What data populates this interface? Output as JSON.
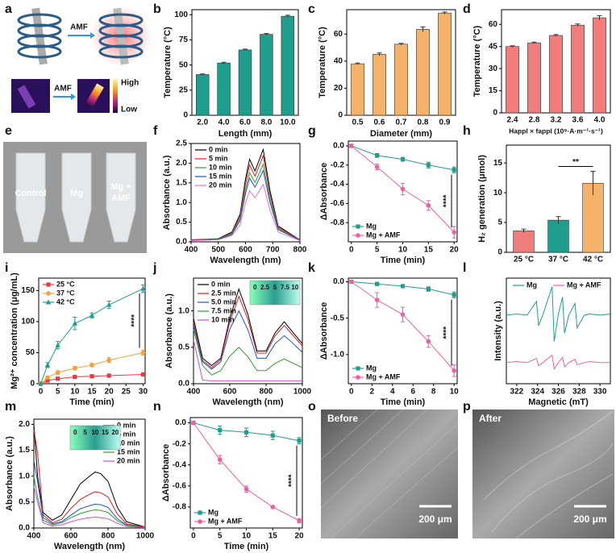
{
  "panels": {
    "a": {
      "panel": "a",
      "arrow_label": "AMF",
      "thermal_arrow_label": "AMF",
      "scale_high": "High",
      "scale_low": "Low"
    },
    "e": {
      "panel": "e",
      "labels": [
        "Control",
        "Mg",
        "Mg +",
        "AMF"
      ]
    },
    "o": {
      "panel": "o",
      "label": "Before",
      "scale": "200 μm"
    },
    "p": {
      "panel": "p",
      "label": "After",
      "scale": "200 μm"
    }
  },
  "chart_data": [
    {
      "panel": "b",
      "type": "bar",
      "categories": [
        "2.0",
        "4.0",
        "6.0",
        "8.0",
        "10.0"
      ],
      "values": [
        40.5,
        52,
        65,
        80.5,
        98.5
      ],
      "errors": [
        0.6,
        0.7,
        0.8,
        0.8,
        1.0
      ],
      "color": "#1f9e8e",
      "ylim": [
        0,
        105
      ],
      "yticks": [
        0,
        25,
        50,
        75,
        100
      ],
      "xlabel": "Length (mm)",
      "ylabel": "Temperature (°C)"
    },
    {
      "panel": "c",
      "type": "bar",
      "categories": [
        "0.5",
        "0.6",
        "0.7",
        "0.8",
        "0.9"
      ],
      "values": [
        38,
        45,
        52.5,
        63.5,
        75.5
      ],
      "errors": [
        0.6,
        1.0,
        0.6,
        1.8,
        0.8
      ],
      "color": "#f5b26b",
      "ylim": [
        0,
        78
      ],
      "yticks": [
        0,
        20,
        40,
        60
      ],
      "xlabel": "Diameter (mm)",
      "ylabel": "Temperature (°C)"
    },
    {
      "panel": "d",
      "type": "bar",
      "categories": [
        "2.4",
        "2.8",
        "3.2",
        "3.6",
        "4.0"
      ],
      "values": [
        45,
        47.5,
        52.5,
        59.5,
        64.5
      ],
      "errors": [
        0.5,
        0.5,
        0.6,
        0.8,
        1.5
      ],
      "color": "#f07c7c",
      "ylim": [
        0,
        70
      ],
      "yticks": [
        0,
        15,
        30,
        45,
        60
      ],
      "xlabel": "Happl × fappl (10⁹·A·m⁻¹·s⁻¹)",
      "ylabel": "Temperature (°C)"
    },
    {
      "panel": "f",
      "type": "line",
      "markers": false,
      "legend": "upper left",
      "x": [
        400,
        500,
        550,
        580,
        600,
        615,
        635,
        665,
        690,
        720,
        800
      ],
      "xlim": [
        400,
        800
      ],
      "xticks": [
        400,
        500,
        600,
        700,
        800
      ],
      "ylim": [
        0,
        2.5
      ],
      "yticks": [
        {
          "value": 0,
          "label": "0.0"
        },
        0.5,
        {
          "value": 1,
          "label": "1.0"
        },
        1.5,
        {
          "value": 2,
          "label": "2.0"
        },
        2.5
      ],
      "xlabel": "Wavelength (nm)",
      "ylabel": "Absorbance (a.u.)",
      "series": [
        {
          "name": "0 min",
          "color": "#000000",
          "values": [
            0.05,
            0.08,
            0.25,
            0.7,
            1.6,
            2.1,
            1.8,
            2.35,
            1.3,
            0.4,
            0.05
          ]
        },
        {
          "name": "5 min",
          "color": "#e31a1c",
          "values": [
            0.05,
            0.07,
            0.23,
            0.65,
            1.49,
            1.95,
            1.67,
            2.19,
            1.21,
            0.37,
            0.05
          ]
        },
        {
          "name": "10 min",
          "color": "#2ca02c",
          "values": [
            0.04,
            0.07,
            0.21,
            0.59,
            1.34,
            1.76,
            1.51,
            1.97,
            1.09,
            0.34,
            0.04
          ]
        },
        {
          "name": "15 min",
          "color": "#1f4fd6",
          "values": [
            0.04,
            0.06,
            0.19,
            0.54,
            1.23,
            1.62,
            1.39,
            1.81,
            1.0,
            0.31,
            0.04
          ]
        },
        {
          "name": "20 min",
          "color": "#e377c2",
          "values": [
            0.03,
            0.05,
            0.16,
            0.43,
            0.99,
            1.3,
            1.12,
            1.46,
            0.81,
            0.25,
            0.03
          ]
        }
      ]
    },
    {
      "panel": "g",
      "type": "line",
      "markers": true,
      "legend": "lower left",
      "annotation": "****",
      "x": [
        0,
        5,
        10,
        15,
        20
      ],
      "xlim": [
        -0.6,
        20.6
      ],
      "xticks": [
        0,
        5,
        10,
        15,
        20
      ],
      "ylim": [
        -1.0,
        0.05
      ],
      "yticks": [
        {
          "value": 0,
          "label": "0.0"
        },
        -0.2,
        -0.4,
        -0.6,
        -0.8
      ],
      "xlabel": "Time (min)",
      "ylabel": "ΔAbsorbance",
      "series": [
        {
          "name": "Mg",
          "color": "#1f9e8e",
          "marker": "square",
          "values": [
            0,
            -0.1,
            -0.14,
            -0.2,
            -0.25
          ],
          "errors": [
            0,
            0.02,
            0.02,
            0.03,
            0.03
          ]
        },
        {
          "name": "Mg + AMF",
          "color": "#f0609e",
          "marker": "circle",
          "values": [
            0,
            -0.22,
            -0.45,
            -0.62,
            -0.9
          ],
          "errors": [
            0,
            0.03,
            0.06,
            0.05,
            0.06
          ]
        }
      ]
    },
    {
      "panel": "h",
      "type": "bar",
      "categories": [
        "25 °C",
        "37 °C",
        "42 °C"
      ],
      "values": [
        3.6,
        5.4,
        11.6
      ],
      "errors": [
        0.3,
        0.6,
        2.0
      ],
      "colors": [
        "#f07c7c",
        "#1f9e8e",
        "#f5b26b"
      ],
      "ylim": [
        0,
        18
      ],
      "yticks": [
        0,
        5,
        10,
        15
      ],
      "ylabel": "H₂ generation (μmol)",
      "annotation": "**"
    },
    {
      "panel": "i",
      "type": "line",
      "markers": true,
      "legend": "upper left",
      "annotation": "****",
      "x": [
        0,
        2,
        5,
        10,
        15,
        20,
        30
      ],
      "xlim": [
        -0.6,
        30.6
      ],
      "xticks": [
        0,
        5,
        10,
        15,
        20,
        25,
        30
      ],
      "ylim": [
        0,
        170
      ],
      "yticks": [
        0,
        50,
        100,
        150
      ],
      "xlabel": "Time (min)",
      "ylabel": "Mg²⁺ concentration (μg/mL)",
      "series": [
        {
          "name": "25 °C",
          "color": "#e8383d",
          "marker": "square",
          "values": [
            0,
            5,
            8,
            11,
            12,
            13,
            15
          ],
          "errors": [
            0,
            1,
            1,
            1,
            1,
            1,
            1.5
          ]
        },
        {
          "name": "37 °C",
          "color": "#f5a23b",
          "marker": "circle",
          "values": [
            0,
            10,
            18,
            25,
            30,
            38,
            50
          ],
          "errors": [
            0,
            2,
            3,
            3,
            3,
            4,
            4
          ]
        },
        {
          "name": "42 °C",
          "color": "#1f9e8e",
          "marker": "triangle",
          "values": [
            0,
            30,
            62,
            97,
            110,
            127,
            153
          ],
          "errors": [
            0,
            4,
            6,
            10,
            4,
            6,
            6
          ]
        }
      ]
    },
    {
      "panel": "j",
      "type": "line",
      "markers": false,
      "legend": "upper left",
      "inset_labels": [
        "0",
        "2.5",
        "5",
        "7.5",
        "10"
      ],
      "x": [
        400,
        450,
        500,
        550,
        600,
        650,
        700,
        750,
        800,
        850,
        900,
        950,
        1000
      ],
      "xlim": [
        400,
        1000
      ],
      "xticks": [
        400,
        600,
        800,
        1000
      ],
      "ylim": [
        0,
        1.45
      ],
      "yticks": [
        {
          "value": 0,
          "label": "0.0"
        },
        0.5,
        {
          "value": 1,
          "label": "1.0"
        }
      ],
      "xlabel": "Wavelength (nm)",
      "ylabel": "Absorbance (a.u.)",
      "series": [
        {
          "name": "0 min",
          "color": "#000000",
          "values": [
            0.9,
            0.35,
            0.25,
            0.35,
            0.9,
            1.3,
            0.95,
            0.45,
            0.45,
            0.7,
            0.85,
            0.7,
            0.55
          ]
        },
        {
          "name": "2.5 min",
          "color": "#e31a1c",
          "values": [
            0.85,
            0.32,
            0.22,
            0.33,
            0.85,
            1.2,
            0.88,
            0.42,
            0.42,
            0.66,
            0.8,
            0.66,
            0.52
          ]
        },
        {
          "name": "5.0 min",
          "color": "#1f4fd6",
          "values": [
            0.8,
            0.3,
            0.2,
            0.3,
            0.75,
            1.0,
            0.74,
            0.35,
            0.35,
            0.55,
            0.66,
            0.55,
            0.43
          ]
        },
        {
          "name": "7.5 min",
          "color": "#2ca02c",
          "values": [
            0.75,
            0.25,
            0.12,
            0.18,
            0.38,
            0.5,
            0.37,
            0.18,
            0.18,
            0.28,
            0.34,
            0.28,
            0.22
          ]
        },
        {
          "name": "10 min",
          "color": "#d14fd1",
          "values": [
            0.6,
            0.05,
            0.04,
            0.04,
            0.04,
            0.04,
            0.04,
            0.04,
            0.04,
            0.04,
            0.04,
            0.04,
            0.04
          ]
        }
      ]
    },
    {
      "panel": "k",
      "type": "line",
      "markers": true,
      "legend": "lower left",
      "annotation": "****",
      "x": [
        0,
        2.5,
        5,
        7.5,
        10
      ],
      "xlim": [
        -0.3,
        10.3
      ],
      "xticks": [
        0,
        2,
        4,
        6,
        8,
        10
      ],
      "ylim": [
        -1.4,
        0.05
      ],
      "yticks": [
        {
          "value": 0,
          "label": "0.0"
        },
        -0.5,
        {
          "value": -1,
          "label": "-1.0"
        }
      ],
      "xlabel": "Time (min)",
      "ylabel": "ΔAbsorbance",
      "series": [
        {
          "name": "Mg",
          "color": "#1f9e8e",
          "marker": "square",
          "values": [
            0,
            -0.03,
            -0.06,
            -0.1,
            -0.18
          ],
          "errors": [
            0,
            0.02,
            0.02,
            0.03,
            0.04
          ]
        },
        {
          "name": "Mg + AMF",
          "color": "#f0609e",
          "marker": "circle",
          "values": [
            0,
            -0.25,
            -0.45,
            -0.82,
            -1.22
          ],
          "errors": [
            0,
            0.1,
            0.1,
            0.08,
            0.08
          ]
        }
      ]
    },
    {
      "panel": "l",
      "type": "line",
      "markers": false,
      "legend": "upper center",
      "x": [
        321,
        322,
        323,
        323.9,
        324.1,
        324.5,
        325.4,
        325.6,
        326,
        326.4,
        326.6,
        327,
        327.6,
        327.8,
        328.5,
        329,
        330,
        331
      ],
      "xlim": [
        321,
        331
      ],
      "xticks": [
        322,
        324,
        326,
        328,
        330
      ],
      "ylim": [
        0,
        1
      ],
      "yticks": [],
      "xlabel": "Magnetic (mT)",
      "ylabel": "Intensity (a.u.)",
      "series": [
        {
          "name": "Mg",
          "color": "#1f9e8e",
          "values": [
            0.65,
            0.66,
            0.65,
            0.78,
            0.55,
            0.65,
            0.92,
            0.4,
            0.66,
            0.82,
            0.48,
            0.65,
            0.76,
            0.53,
            0.65,
            0.66,
            0.65,
            0.66
          ]
        },
        {
          "name": "Mg + AMF",
          "color": "#f0609e",
          "values": [
            0.2,
            0.21,
            0.2,
            0.24,
            0.17,
            0.2,
            0.27,
            0.14,
            0.2,
            0.25,
            0.16,
            0.2,
            0.23,
            0.18,
            0.2,
            0.21,
            0.2,
            0.2
          ]
        }
      ]
    },
    {
      "panel": "m",
      "type": "line",
      "markers": false,
      "legend": "upper right",
      "inset_labels": [
        "0",
        "5",
        "10",
        "15",
        "20"
      ],
      "x": [
        400,
        420,
        450,
        500,
        550,
        600,
        650,
        700,
        730,
        760,
        800,
        850,
        900,
        1000
      ],
      "xlim": [
        400,
        1000
      ],
      "xticks": [
        400,
        600,
        800,
        1000
      ],
      "ylim": [
        0,
        2.1
      ],
      "yticks": [
        {
          "value": 0,
          "label": "0.0"
        },
        0.5,
        {
          "value": 1,
          "label": "1.0"
        },
        1.5,
        {
          "value": 2,
          "label": "2.0"
        }
      ],
      "xlabel": "Wavelength (nm)",
      "ylabel": "Absorbance (a.u.)",
      "series": [
        {
          "name": "0 min",
          "color": "#000000",
          "values": [
            2.0,
            1.0,
            0.3,
            0.15,
            0.25,
            0.55,
            0.85,
            1.0,
            1.08,
            1.05,
            0.9,
            0.4,
            0.12,
            0.02
          ]
        },
        {
          "name": "5 min",
          "color": "#e31a1c",
          "values": [
            1.9,
            1.45,
            0.25,
            0.1,
            0.17,
            0.38,
            0.55,
            0.65,
            0.7,
            0.68,
            0.6,
            0.27,
            0.08,
            0.02
          ]
        },
        {
          "name": "10 min",
          "color": "#1f4fd6",
          "values": [
            1.3,
            0.9,
            0.2,
            0.08,
            0.12,
            0.25,
            0.37,
            0.43,
            0.46,
            0.45,
            0.4,
            0.18,
            0.06,
            0.01
          ]
        },
        {
          "name": "15 min",
          "color": "#2ca02c",
          "values": [
            1.0,
            0.6,
            0.15,
            0.06,
            0.1,
            0.2,
            0.28,
            0.33,
            0.35,
            0.34,
            0.3,
            0.14,
            0.05,
            0.01
          ]
        },
        {
          "name": "20 min",
          "color": "#d14fd1",
          "values": [
            0.8,
            0.5,
            0.1,
            0.04,
            0.06,
            0.12,
            0.17,
            0.2,
            0.21,
            0.2,
            0.18,
            0.09,
            0.03,
            0.01
          ]
        }
      ]
    },
    {
      "panel": "n",
      "type": "line",
      "markers": true,
      "legend": "lower left",
      "annotation": "****",
      "x": [
        0,
        5,
        10,
        15,
        20
      ],
      "xlim": [
        -0.6,
        20.6
      ],
      "xticks": [
        0,
        5,
        10,
        15,
        20
      ],
      "ylim": [
        -1.0,
        0.05
      ],
      "yticks": [
        {
          "value": 0,
          "label": "0.0"
        },
        -0.2,
        -0.4,
        -0.6,
        -0.8
      ],
      "xlabel": "Time (min)",
      "ylabel": "ΔAbsorbance",
      "series": [
        {
          "name": "Mg",
          "color": "#1f9e8e",
          "marker": "square",
          "values": [
            0,
            -0.07,
            -0.09,
            -0.12,
            -0.17
          ],
          "errors": [
            0,
            0.04,
            0.04,
            0.04,
            0.03
          ]
        },
        {
          "name": "Mg + AMF",
          "color": "#f0609e",
          "marker": "circle",
          "values": [
            0,
            -0.35,
            -0.63,
            -0.8,
            -0.93
          ],
          "errors": [
            0,
            0.04,
            0.03,
            0.01,
            0.02
          ]
        }
      ]
    }
  ]
}
